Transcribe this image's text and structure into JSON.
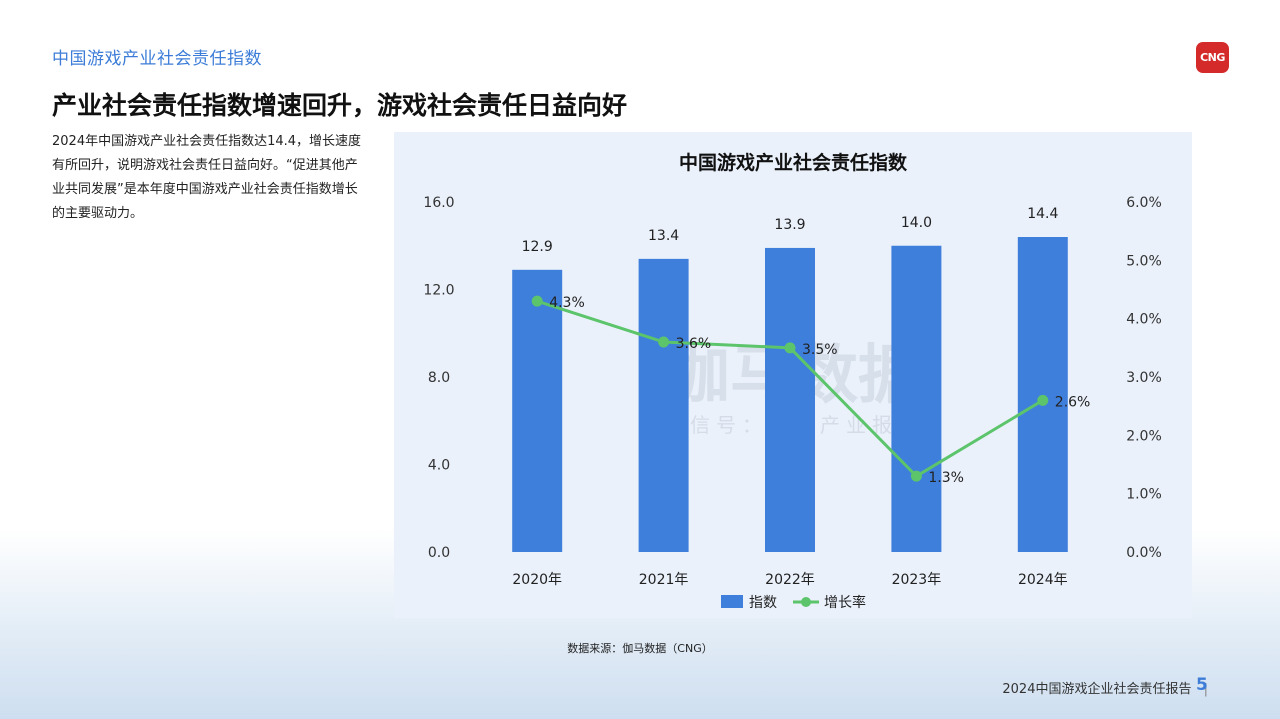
{
  "header": {
    "section_title": "中国游戏产业社会责任指数",
    "logo_text": "CNG",
    "headline": "产业社会责任指数增速回升，游戏社会责任日益向好"
  },
  "description": "2024年中国游戏产业社会责任指数达14.4，增长速度有所回升，说明游戏社会责任日益向好。“促进其他产业共同发展”是本年度中国游戏产业社会责任指数增长的主要驱动力。",
  "chart_data": {
    "type": "bar",
    "title": "中国游戏产业社会责任指数",
    "categories": [
      "2020年",
      "2021年",
      "2022年",
      "2023年",
      "2024年"
    ],
    "series": [
      {
        "name": "指数",
        "type": "bar",
        "axis": "left",
        "values": [
          12.9,
          13.4,
          13.9,
          14.0,
          14.4
        ],
        "labels": [
          "12.9",
          "13.4",
          "13.9",
          "14.0",
          "14.4"
        ],
        "color": "#3f7fdc"
      },
      {
        "name": "增长率",
        "type": "line",
        "axis": "right",
        "values": [
          4.3,
          3.6,
          3.5,
          1.3,
          2.6
        ],
        "labels": [
          "4.3%",
          "3.6%",
          "3.5%",
          "1.3%",
          "2.6%"
        ],
        "color": "#5cc46a"
      }
    ],
    "y_left": {
      "min": 0,
      "max": 16,
      "ticks": [
        "0.0",
        "4.0",
        "8.0",
        "12.0",
        "16.0"
      ]
    },
    "y_right": {
      "min": 0,
      "max": 6,
      "ticks": [
        "0.0%",
        "1.0%",
        "2.0%",
        "3.0%",
        "4.0%",
        "5.0%",
        "6.0%"
      ]
    },
    "legend_position": "bottom",
    "grid": false,
    "watermark": "伽马数据",
    "watermark_sub": "微信号：游戏产业报告"
  },
  "source": "数据来源：伽马数据（CNG）",
  "footer": {
    "report_title": "2024中国游戏企业社会责任报告",
    "separator": "|",
    "page_number": "5"
  },
  "colors": {
    "accent": "#3d7dd8",
    "bar": "#3f7fdc",
    "line": "#5cc46a",
    "logo": "#d42a2a"
  }
}
